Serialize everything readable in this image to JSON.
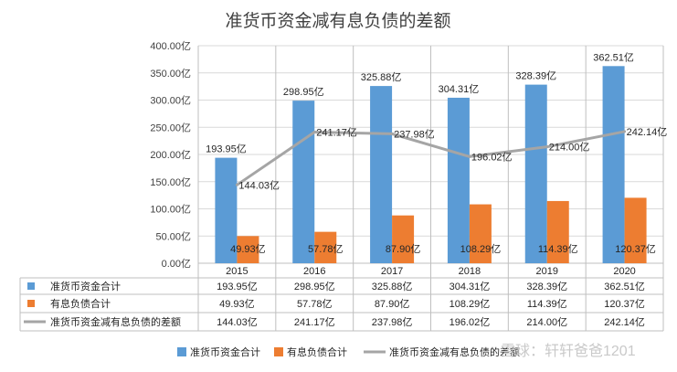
{
  "chart_data": {
    "type": "bar",
    "title": "准货币资金减有息负债的差额",
    "categories": [
      "2015",
      "2016",
      "2017",
      "2018",
      "2019",
      "2020"
    ],
    "ylim": [
      0,
      400
    ],
    "yticks": [
      "0.00亿",
      "50.00亿",
      "100.00亿",
      "150.00亿",
      "200.00亿",
      "250.00亿",
      "300.00亿",
      "350.00亿",
      "400.00亿"
    ],
    "grid": true,
    "legend_position": "bottom",
    "series": [
      {
        "name": "准货币资金合计",
        "type": "bar",
        "color": "#5b9bd5",
        "values": [
          193.95,
          298.95,
          325.88,
          304.31,
          328.39,
          362.51
        ],
        "labels": [
          "193.95亿",
          "298.95亿",
          "325.88亿",
          "304.31亿",
          "328.39亿",
          "362.51亿"
        ]
      },
      {
        "name": "有息负债合计",
        "type": "bar",
        "color": "#ed7d31",
        "values": [
          49.93,
          57.78,
          87.9,
          108.29,
          114.39,
          120.37
        ],
        "labels": [
          "49.93亿",
          "57.78亿",
          "87.90亿",
          "108.29亿",
          "114.39亿",
          "120.37亿"
        ]
      },
      {
        "name": "准货币资金减有息负债的差额",
        "type": "line",
        "color": "#a5a5a5",
        "values": [
          144.03,
          241.17,
          237.98,
          196.02,
          214.0,
          242.14
        ],
        "labels": [
          "144.03亿",
          "241.17亿",
          "237.98亿",
          "196.02亿",
          "214.00亿",
          "242.14亿"
        ]
      }
    ]
  },
  "watermark": "雪球：轩轩爸爸1201"
}
